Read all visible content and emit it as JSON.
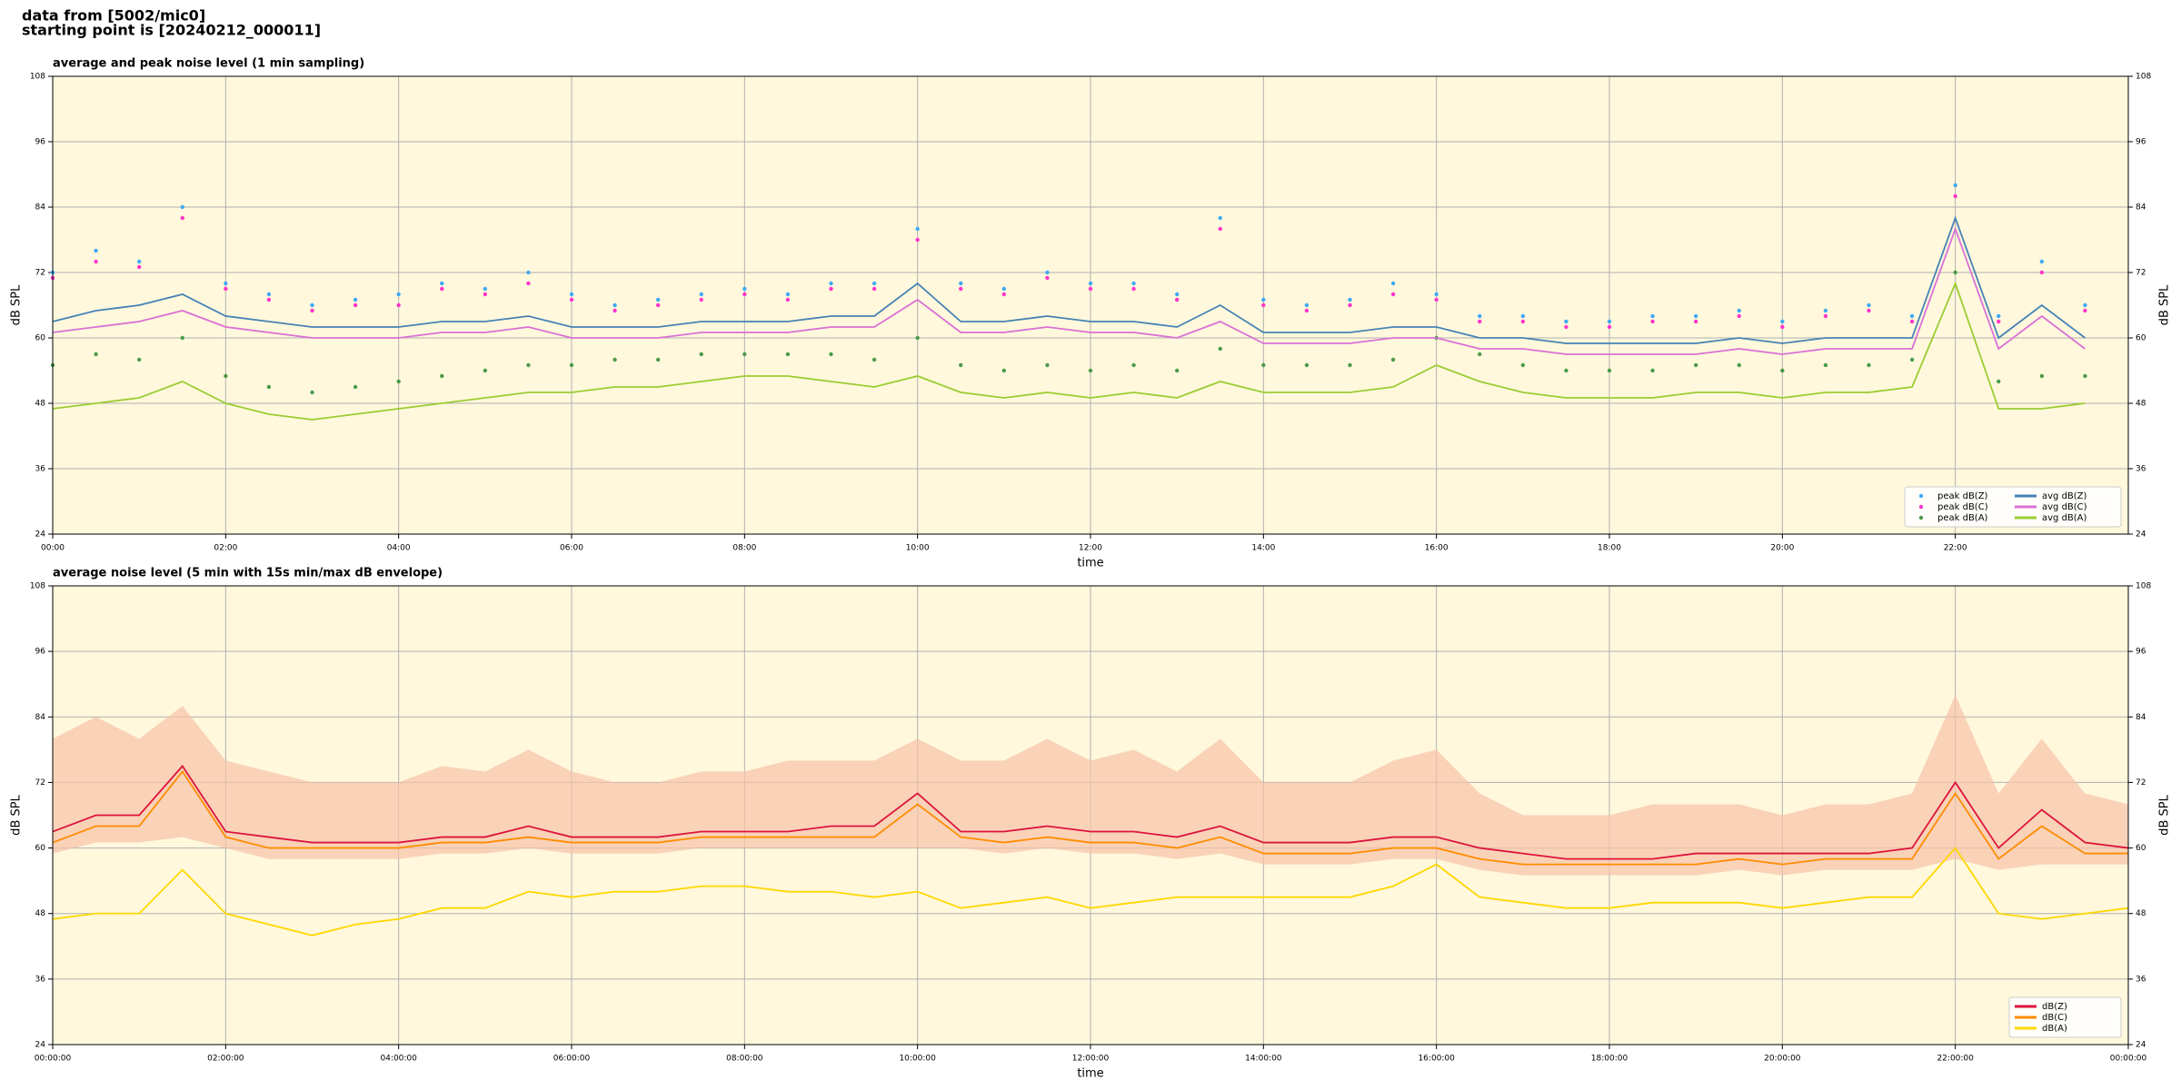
{
  "header": {
    "line1": "data from [5002/mic0]",
    "line2": "starting point is [20240212_000011]"
  },
  "chart_data": [
    {
      "type": "line",
      "title": "average and peak noise level (1 min sampling)",
      "xlabel": "time",
      "ylabel": "dB SPL",
      "xlim": [
        0,
        24
      ],
      "ylim": [
        24,
        108
      ],
      "yticks": [
        24,
        36,
        48,
        60,
        72,
        84,
        96,
        108
      ],
      "xticks": [
        {
          "value": 0,
          "label": "00:00"
        },
        {
          "value": 2,
          "label": "02:00"
        },
        {
          "value": 4,
          "label": "04:00"
        },
        {
          "value": 6,
          "label": "06:00"
        },
        {
          "value": 8,
          "label": "08:00"
        },
        {
          "value": 10,
          "label": "10:00"
        },
        {
          "value": 12,
          "label": "12:00"
        },
        {
          "value": 14,
          "label": "14:00"
        },
        {
          "value": 16,
          "label": "16:00"
        },
        {
          "value": 18,
          "label": "18:00"
        },
        {
          "value": 20,
          "label": "20:00"
        },
        {
          "value": 22,
          "label": "22:00"
        }
      ],
      "grid": true,
      "legend": "lower right",
      "background": "#fff8dc",
      "x": [
        0,
        0.5,
        1,
        1.5,
        2,
        2.5,
        3,
        3.5,
        4,
        4.5,
        5,
        5.5,
        6,
        6.5,
        7,
        7.5,
        8,
        8.5,
        9,
        9.5,
        10,
        10.5,
        11,
        11.5,
        12,
        12.5,
        13,
        13.5,
        14,
        14.5,
        15,
        15.5,
        16,
        16.5,
        17,
        17.5,
        18,
        18.5,
        19,
        19.5,
        20,
        20.5,
        21,
        21.5,
        22,
        22.5,
        23,
        23.5
      ],
      "series": [
        {
          "name": "peak dB(Z)",
          "mode": "markers",
          "color": "#3fa9f5",
          "values": [
            72,
            76,
            74,
            84,
            70,
            68,
            66,
            67,
            68,
            70,
            69,
            72,
            68,
            66,
            67,
            68,
            69,
            68,
            70,
            70,
            80,
            70,
            69,
            72,
            70,
            70,
            68,
            82,
            67,
            66,
            67,
            70,
            68,
            64,
            64,
            63,
            63,
            64,
            64,
            65,
            63,
            65,
            66,
            64,
            88,
            64,
            74,
            66
          ]
        },
        {
          "name": "peak dB(C)",
          "mode": "markers",
          "color": "#ff33cc",
          "values": [
            71,
            74,
            73,
            82,
            69,
            67,
            65,
            66,
            66,
            69,
            68,
            70,
            67,
            65,
            66,
            67,
            68,
            67,
            69,
            69,
            78,
            69,
            68,
            71,
            69,
            69,
            67,
            80,
            66,
            65,
            66,
            68,
            67,
            63,
            63,
            62,
            62,
            63,
            63,
            64,
            62,
            64,
            65,
            63,
            86,
            63,
            72,
            65
          ]
        },
        {
          "name": "peak dB(A)",
          "mode": "markers",
          "color": "#4a9a4a",
          "values": [
            55,
            57,
            56,
            60,
            53,
            51,
            50,
            51,
            52,
            53,
            54,
            55,
            55,
            56,
            56,
            57,
            57,
            57,
            57,
            56,
            60,
            55,
            54,
            55,
            54,
            55,
            54,
            58,
            55,
            55,
            55,
            56,
            60,
            57,
            55,
            54,
            54,
            54,
            55,
            55,
            54,
            55,
            55,
            56,
            72,
            52,
            53,
            53
          ]
        },
        {
          "name": "avg dB(Z)",
          "mode": "line",
          "color": "#4682b4",
          "values": [
            63,
            65,
            66,
            68,
            64,
            63,
            62,
            62,
            62,
            63,
            63,
            64,
            62,
            62,
            62,
            63,
            63,
            63,
            64,
            64,
            70,
            63,
            63,
            64,
            63,
            63,
            62,
            66,
            61,
            61,
            61,
            62,
            62,
            60,
            60,
            59,
            59,
            59,
            59,
            60,
            59,
            60,
            60,
            60,
            82,
            60,
            66,
            60
          ]
        },
        {
          "name": "avg dB(C)",
          "mode": "line",
          "color": "#da70d6",
          "values": [
            61,
            62,
            63,
            65,
            62,
            61,
            60,
            60,
            60,
            61,
            61,
            62,
            60,
            60,
            60,
            61,
            61,
            61,
            62,
            62,
            67,
            61,
            61,
            62,
            61,
            61,
            60,
            63,
            59,
            59,
            59,
            60,
            60,
            58,
            58,
            57,
            57,
            57,
            57,
            58,
            57,
            58,
            58,
            58,
            80,
            58,
            64,
            58
          ]
        },
        {
          "name": "avg dB(A)",
          "mode": "line",
          "color": "#9acd32",
          "values": [
            47,
            48,
            49,
            52,
            48,
            46,
            45,
            46,
            47,
            48,
            49,
            50,
            50,
            51,
            51,
            52,
            53,
            53,
            52,
            51,
            53,
            50,
            49,
            50,
            49,
            50,
            49,
            52,
            50,
            50,
            50,
            51,
            55,
            52,
            50,
            49,
            49,
            49,
            50,
            50,
            49,
            50,
            50,
            51,
            70,
            47,
            47,
            48
          ]
        }
      ]
    },
    {
      "type": "line",
      "title": "average noise level (5 min with 15s min/max dB envelope)",
      "xlabel": "time",
      "ylabel": "dB SPL",
      "xlim": [
        0,
        24
      ],
      "ylim": [
        24,
        108
      ],
      "yticks": [
        24,
        36,
        48,
        60,
        72,
        84,
        96,
        108
      ],
      "xticks": [
        {
          "value": 0,
          "label": "00:00:00"
        },
        {
          "value": 2,
          "label": "02:00:00"
        },
        {
          "value": 4,
          "label": "04:00:00"
        },
        {
          "value": 6,
          "label": "06:00:00"
        },
        {
          "value": 8,
          "label": "08:00:00"
        },
        {
          "value": 10,
          "label": "10:00:00"
        },
        {
          "value": 12,
          "label": "12:00:00"
        },
        {
          "value": 14,
          "label": "14:00:00"
        },
        {
          "value": 16,
          "label": "16:00:00"
        },
        {
          "value": 18,
          "label": "18:00:00"
        },
        {
          "value": 20,
          "label": "20:00:00"
        },
        {
          "value": 22,
          "label": "22:00:00"
        },
        {
          "value": 24,
          "label": "00:00:00"
        }
      ],
      "grid": true,
      "legend": "lower right",
      "background": "#fff8dc",
      "x": [
        0,
        0.5,
        1,
        1.5,
        2,
        2.5,
        3,
        3.5,
        4,
        4.5,
        5,
        5.5,
        6,
        6.5,
        7,
        7.5,
        8,
        8.5,
        9,
        9.5,
        10,
        10.5,
        11,
        11.5,
        12,
        12.5,
        13,
        13.5,
        14,
        14.5,
        15,
        15.5,
        16,
        16.5,
        17,
        17.5,
        18,
        18.5,
        19,
        19.5,
        20,
        20.5,
        21,
        21.5,
        22,
        22.5,
        23,
        23.5,
        24
      ],
      "envelope": {
        "color": "#f6c2a8",
        "min": [
          59,
          61,
          61,
          62,
          60,
          58,
          58,
          58,
          58,
          59,
          59,
          60,
          59,
          59,
          59,
          60,
          60,
          60,
          60,
          60,
          60,
          60,
          59,
          60,
          59,
          59,
          58,
          59,
          57,
          57,
          57,
          58,
          58,
          56,
          55,
          55,
          55,
          55,
          55,
          56,
          55,
          56,
          56,
          56,
          58,
          56,
          57,
          57,
          57
        ],
        "max": [
          80,
          84,
          80,
          86,
          76,
          74,
          72,
          72,
          72,
          75,
          74,
          78,
          74,
          72,
          72,
          74,
          74,
          76,
          76,
          76,
          80,
          76,
          76,
          80,
          76,
          78,
          74,
          80,
          72,
          72,
          72,
          76,
          78,
          70,
          66,
          66,
          66,
          68,
          68,
          68,
          66,
          68,
          68,
          70,
          88,
          70,
          80,
          70,
          68
        ]
      },
      "series": [
        {
          "name": "dB(Z)",
          "mode": "line",
          "color": "#dc143c",
          "values": [
            63,
            66,
            66,
            75,
            63,
            62,
            61,
            61,
            61,
            62,
            62,
            64,
            62,
            62,
            62,
            63,
            63,
            63,
            64,
            64,
            70,
            63,
            63,
            64,
            63,
            63,
            62,
            64,
            61,
            61,
            61,
            62,
            62,
            60,
            59,
            58,
            58,
            58,
            59,
            59,
            59,
            59,
            59,
            60,
            72,
            60,
            67,
            61,
            60
          ]
        },
        {
          "name": "dB(C)",
          "mode": "line",
          "color": "#ff8c00",
          "values": [
            61,
            64,
            64,
            74,
            62,
            60,
            60,
            60,
            60,
            61,
            61,
            62,
            61,
            61,
            61,
            62,
            62,
            62,
            62,
            62,
            68,
            62,
            61,
            62,
            61,
            61,
            60,
            62,
            59,
            59,
            59,
            60,
            60,
            58,
            57,
            57,
            57,
            57,
            57,
            58,
            57,
            58,
            58,
            58,
            70,
            58,
            64,
            59,
            59
          ]
        },
        {
          "name": "dB(A)",
          "mode": "line",
          "color": "#ffd700",
          "values": [
            47,
            48,
            48,
            56,
            48,
            46,
            44,
            46,
            47,
            49,
            49,
            52,
            51,
            52,
            52,
            53,
            53,
            52,
            52,
            51,
            52,
            49,
            50,
            51,
            49,
            50,
            51,
            51,
            51,
            51,
            51,
            53,
            57,
            51,
            50,
            49,
            49,
            50,
            50,
            50,
            49,
            50,
            51,
            51,
            60,
            48,
            47,
            48,
            49
          ]
        }
      ]
    }
  ]
}
